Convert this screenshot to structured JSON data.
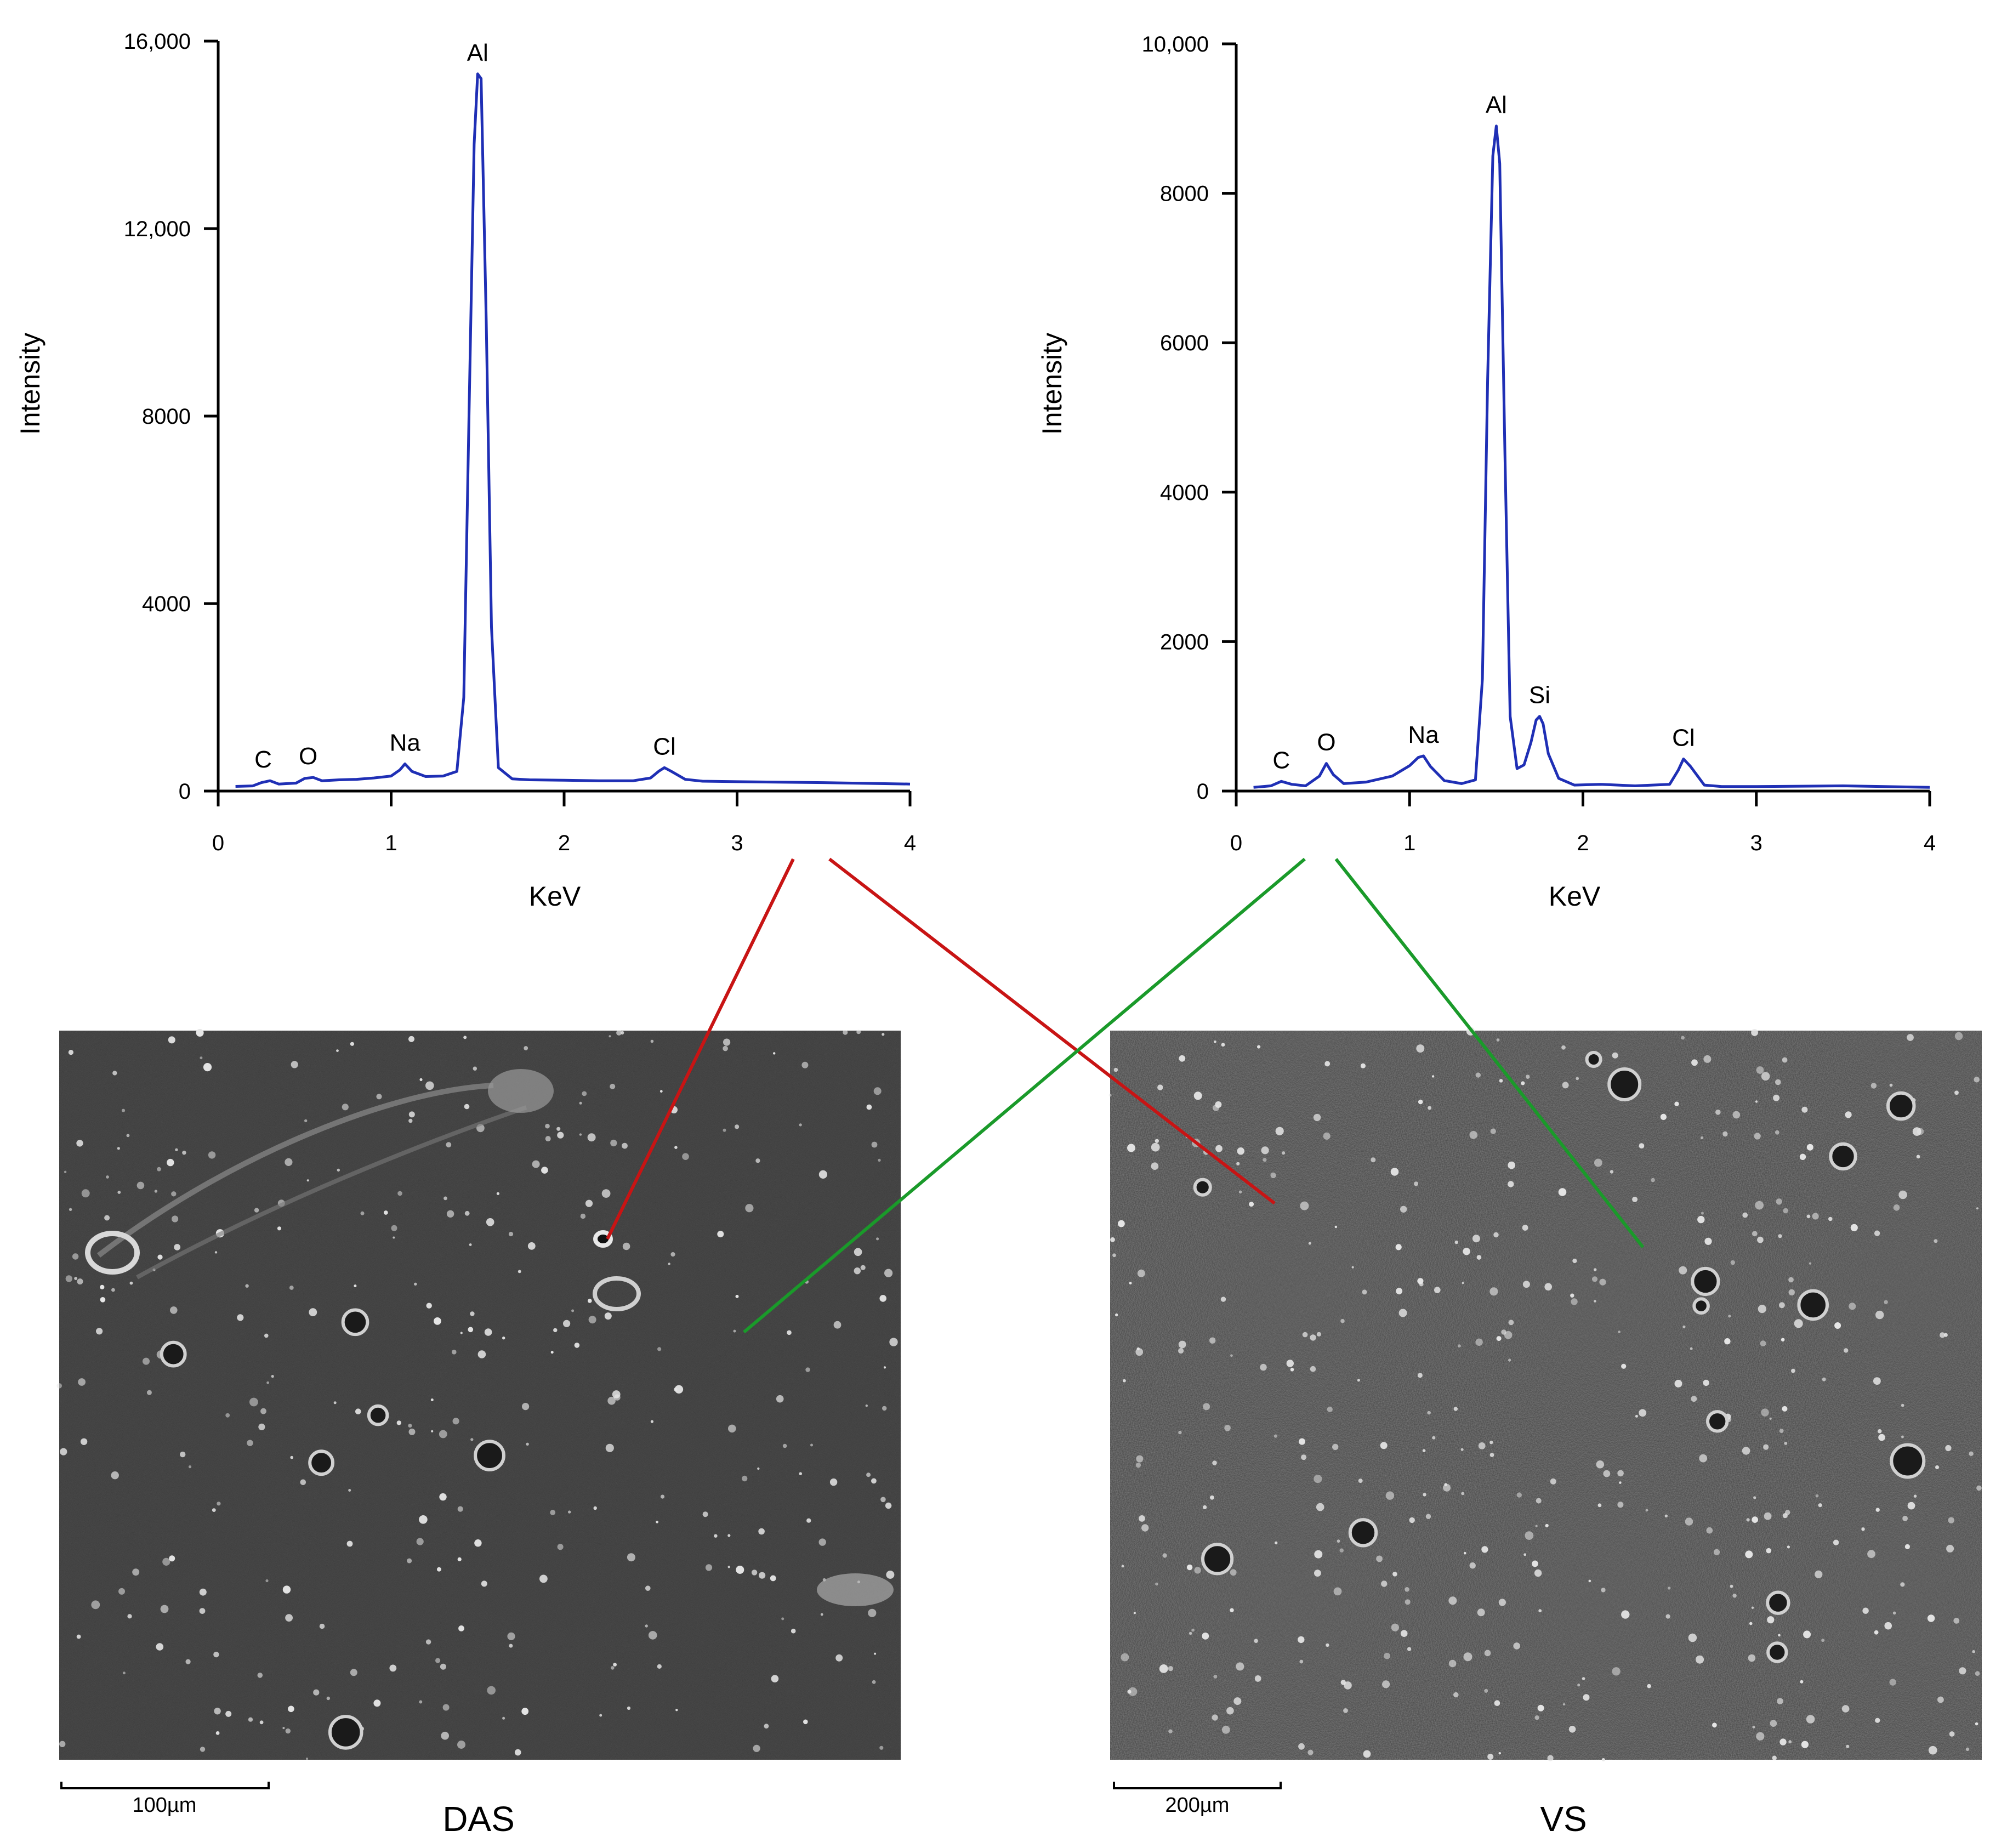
{
  "chart_data": [
    {
      "type": "line",
      "xlabel": "KeV",
      "ylabel": "Intensity",
      "xlim": [
        0,
        4
      ],
      "ylim": [
        0,
        16000
      ],
      "x_ticks": [
        "0",
        "1",
        "2",
        "3",
        "4"
      ],
      "y_ticks": [
        {
          "value": 0,
          "label": "0"
        },
        {
          "value": 4000,
          "label": "4000"
        },
        {
          "value": 8000,
          "label": "8000"
        },
        {
          "value": 12000,
          "label": "12,000"
        },
        {
          "value": 16000,
          "label": "16,000"
        }
      ],
      "grid": false,
      "line_color": "#1f2fb5",
      "series": [
        {
          "x": [
            0.1,
            0.2,
            0.25,
            0.3,
            0.35,
            0.45,
            0.5,
            0.55,
            0.6,
            0.7,
            0.8,
            0.9,
            1.0,
            1.05,
            1.08,
            1.12,
            1.2,
            1.3,
            1.38,
            1.42,
            1.45,
            1.48,
            1.5,
            1.52,
            1.55,
            1.58,
            1.62,
            1.7,
            1.8,
            2.0,
            2.2,
            2.4,
            2.5,
            2.55,
            2.58,
            2.62,
            2.7,
            2.8,
            3.0,
            3.5,
            4.0
          ],
          "y": [
            100,
            110,
            180,
            220,
            150,
            170,
            270,
            290,
            220,
            240,
            250,
            280,
            320,
            450,
            580,
            420,
            310,
            320,
            420,
            2000,
            8000,
            13800,
            15300,
            15200,
            10000,
            3500,
            500,
            260,
            240,
            230,
            220,
            220,
            280,
            430,
            500,
            420,
            250,
            210,
            200,
            180,
            150
          ]
        }
      ],
      "peaks": [
        {
          "label": "C",
          "x": 0.26
        },
        {
          "label": "O",
          "x": 0.52
        },
        {
          "label": "Na",
          "x": 1.08
        },
        {
          "label": "Al",
          "x": 1.5
        },
        {
          "label": "Cl",
          "x": 2.58
        }
      ]
    },
    {
      "type": "line",
      "xlabel": "KeV",
      "ylabel": "Intensity",
      "xlim": [
        0,
        4
      ],
      "ylim": [
        0,
        10000
      ],
      "x_ticks": [
        "0",
        "1",
        "2",
        "3",
        "4"
      ],
      "y_ticks": [
        {
          "value": 0,
          "label": "0"
        },
        {
          "value": 2000,
          "label": "2000"
        },
        {
          "value": 4000,
          "label": "4000"
        },
        {
          "value": 6000,
          "label": "6000"
        },
        {
          "value": 8000,
          "label": "8000"
        },
        {
          "value": 10000,
          "label": "10,000"
        }
      ],
      "grid": false,
      "line_color": "#1f2fb5",
      "series": [
        {
          "x": [
            0.1,
            0.2,
            0.26,
            0.32,
            0.4,
            0.48,
            0.52,
            0.56,
            0.62,
            0.75,
            0.9,
            1.0,
            1.05,
            1.08,
            1.12,
            1.2,
            1.3,
            1.38,
            1.42,
            1.45,
            1.48,
            1.5,
            1.52,
            1.55,
            1.58,
            1.62,
            1.66,
            1.7,
            1.73,
            1.75,
            1.77,
            1.8,
            1.86,
            1.95,
            2.1,
            2.3,
            2.5,
            2.55,
            2.58,
            2.62,
            2.7,
            2.8,
            3.0,
            3.5,
            4.0
          ],
          "y": [
            50,
            70,
            130,
            90,
            70,
            200,
            370,
            220,
            100,
            120,
            200,
            340,
            450,
            470,
            330,
            140,
            100,
            150,
            1500,
            5500,
            8500,
            8900,
            8400,
            4500,
            1000,
            300,
            350,
            650,
            950,
            1000,
            900,
            500,
            170,
            80,
            90,
            70,
            90,
            280,
            430,
            330,
            80,
            60,
            60,
            70,
            50
          ]
        }
      ],
      "peaks": [
        {
          "label": "C",
          "x": 0.26
        },
        {
          "label": "O",
          "x": 0.52
        },
        {
          "label": "Na",
          "x": 1.08
        },
        {
          "label": "Al",
          "x": 1.5
        },
        {
          "label": "Si",
          "x": 1.75
        },
        {
          "label": "Cl",
          "x": 2.58
        }
      ]
    }
  ],
  "micrographs": [
    {
      "caption": "DAS",
      "scale_label": "100µm"
    },
    {
      "caption": "VS",
      "scale_label": "200µm"
    }
  ],
  "connectors": {
    "left_color": "#c81414",
    "right_color": "#1a9a2a"
  }
}
